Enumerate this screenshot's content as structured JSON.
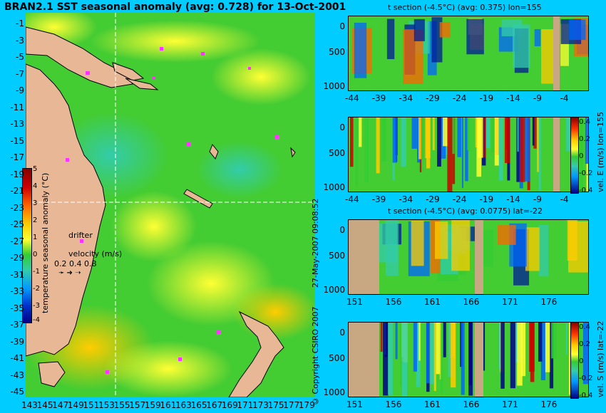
{
  "title": "BRAN2.1 SST seasonal anomaly (avg: 0.728) for 13-Oct-2001",
  "map": {
    "lat_labels": [
      "-1",
      "-3",
      "-5",
      "-7",
      "-9",
      "-11",
      "-13",
      "-15",
      "-17",
      "-19",
      "-21",
      "-23",
      "-25",
      "-27",
      "-29",
      "-31",
      "-33",
      "-35",
      "-37",
      "-39",
      "-41",
      "-43",
      "-45"
    ],
    "lon_labels": [
      "143",
      "145",
      "147",
      "149",
      "151",
      "153",
      "155",
      "157",
      "159",
      "161",
      "163",
      "165",
      "167",
      "169",
      "171",
      "173",
      "175",
      "177",
      "179"
    ],
    "colorbar_label": "temperature seasonal anomaly (°C)",
    "colorbar_ticks": [
      "5",
      "4",
      "3",
      "2",
      "1",
      "0",
      "-1",
      "-2",
      "-3",
      "-4"
    ],
    "drifter_label": "drifter",
    "velocity_label": "velocity (m/s)",
    "velocity_scale": "0.2 0.4 0.8",
    "section_lon": 155,
    "section_lat": -22,
    "colors": {
      "land": "#e8b896",
      "ocean_base": "#33cc33",
      "drifter": "#ff33ff",
      "crosshair": "#ffffff"
    }
  },
  "timestamp": "27-May-2007 09:08:52",
  "copyright": "© Copyright CSIRO 2007",
  "panels": [
    {
      "title": "t section (-4.5°C) (avg: 0.375) lon=155",
      "x_ticks": [
        "-44",
        "-39",
        "-34",
        "-29",
        "-24",
        "-19",
        "-14",
        "-9",
        "-4"
      ],
      "y_ticks": [
        "0",
        "500",
        "1000"
      ]
    },
    {
      "title": "",
      "x_ticks": [
        "-44",
        "-39",
        "-34",
        "-29",
        "-24",
        "-19",
        "-14",
        "-9",
        "-4"
      ],
      "y_ticks": [
        "0",
        "500",
        "1000"
      ],
      "cb_label": "vel. E (m/s) lon=155",
      "cb_ticks": [
        "0.4",
        "0.2",
        "0",
        "-0.2",
        "-0.4"
      ]
    },
    {
      "title": "t section (-4.5°C) (avg: 0.0775) lat=-22",
      "x_ticks": [
        "151",
        "156",
        "161",
        "166",
        "171",
        "176"
      ],
      "y_ticks": [
        "0",
        "500",
        "1000"
      ]
    },
    {
      "title": "",
      "x_ticks": [
        "151",
        "156",
        "161",
        "166",
        "171",
        "176"
      ],
      "y_ticks": [
        "0",
        "500",
        "1000"
      ],
      "cb_label": "vel. S (m/s) lat=-22",
      "cb_ticks": [
        "0.4",
        "0.2",
        "0",
        "-0.2",
        "-0.4"
      ]
    }
  ]
}
